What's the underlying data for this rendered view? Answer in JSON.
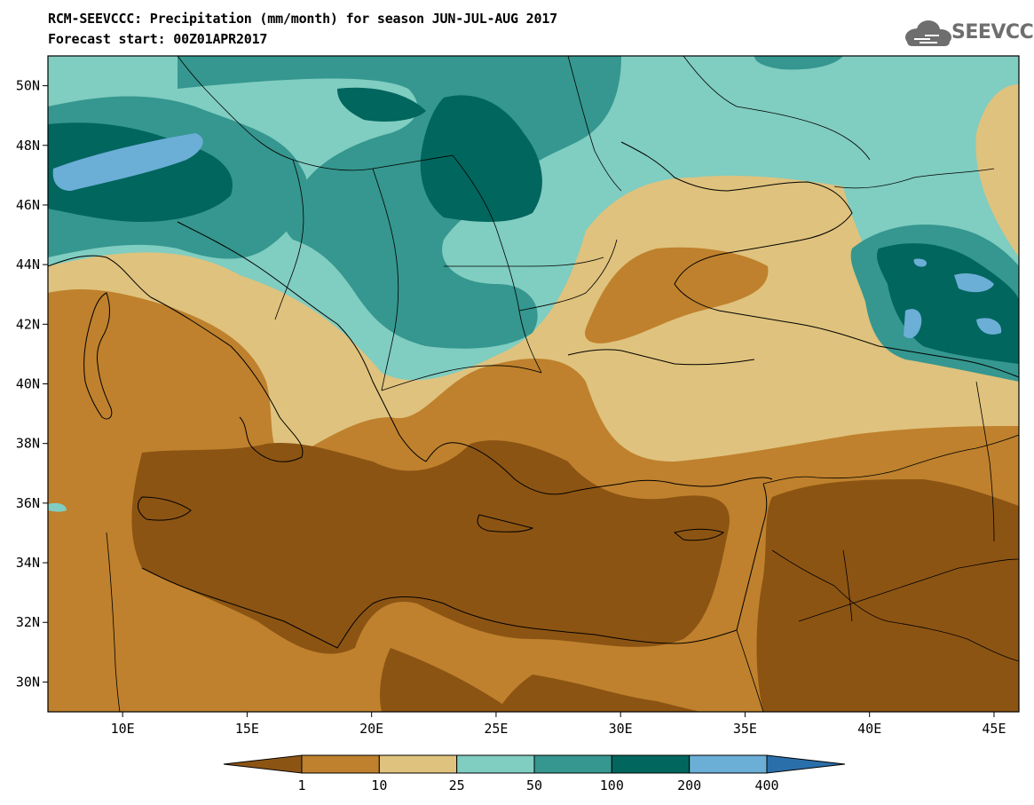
{
  "title_line1": "RCM-SEEVCCC: Precipitation (mm/month) for season JUN-JUL-AUG 2017",
  "title_line2": "Forecast start: 00Z01APR2017",
  "logo": {
    "text": "SEEVCCC",
    "icon": "cloud-icon"
  },
  "map": {
    "lon_range": [
      7,
      46
    ],
    "lat_range": [
      29,
      51
    ],
    "lat_ticks": [
      {
        "value": 30,
        "label": "30N"
      },
      {
        "value": 32,
        "label": "32N"
      },
      {
        "value": 34,
        "label": "34N"
      },
      {
        "value": 36,
        "label": "36N"
      },
      {
        "value": 38,
        "label": "38N"
      },
      {
        "value": 40,
        "label": "40N"
      },
      {
        "value": 42,
        "label": "42N"
      },
      {
        "value": 44,
        "label": "44N"
      },
      {
        "value": 46,
        "label": "46N"
      },
      {
        "value": 48,
        "label": "48N"
      },
      {
        "value": 50,
        "label": "50N"
      }
    ],
    "lon_ticks": [
      {
        "value": 10,
        "label": "10E"
      },
      {
        "value": 15,
        "label": "15E"
      },
      {
        "value": 20,
        "label": "20E"
      },
      {
        "value": 25,
        "label": "25E"
      },
      {
        "value": 30,
        "label": "30E"
      },
      {
        "value": 35,
        "label": "35E"
      },
      {
        "value": 40,
        "label": "40E"
      },
      {
        "value": 45,
        "label": "45E"
      }
    ]
  },
  "colorbar": {
    "colors": [
      "#8c5413",
      "#bf812d",
      "#dfc27d",
      "#80cdc1",
      "#35978f",
      "#01665e",
      "#6baed6",
      "#2b6faa"
    ],
    "labels": [
      "1",
      "10",
      "25",
      "50",
      "100",
      "200",
      "400"
    ]
  }
}
